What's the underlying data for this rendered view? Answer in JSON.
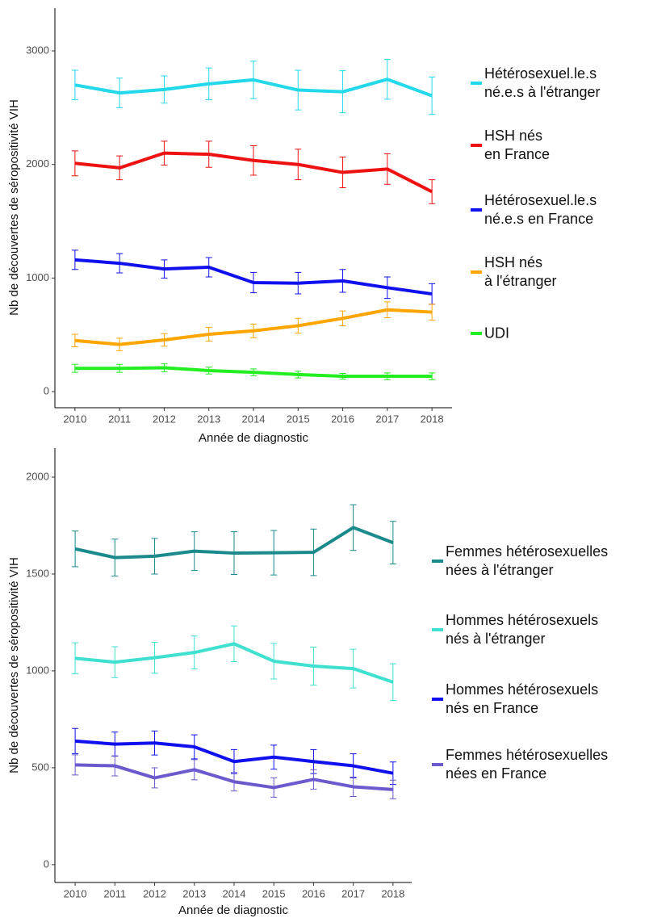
{
  "chart_data": [
    {
      "type": "line",
      "x_label": "Année de diagnostic",
      "y_label": "Nb de découvertes de séropositivité VIH",
      "x": [
        2010,
        2011,
        2012,
        2013,
        2014,
        2015,
        2016,
        2017,
        2018
      ],
      "xlim": [
        2009.55,
        2018.45
      ],
      "xticks": [
        2010,
        2011,
        2012,
        2013,
        2014,
        2015,
        2016,
        2017,
        2018
      ],
      "ylim": [
        -142,
        3377
      ],
      "yticks": [
        0,
        1000,
        2000,
        3000
      ],
      "series": [
        {
          "name": "Hétérosexuel.le.s\n né.e.s à l'étranger",
          "color": "#22d8ea",
          "values": [
            2700,
            2630,
            2660,
            2710,
            2745,
            2655,
            2640,
            2750,
            2605
          ],
          "errors": [
            130,
            130,
            120,
            140,
            165,
            175,
            185,
            175,
            165
          ]
        },
        {
          "name": "HSH nés\n en France",
          "color": "#ee1111",
          "values": [
            2010,
            1970,
            2100,
            2090,
            2035,
            2000,
            1930,
            1960,
            1760
          ],
          "errors": [
            110,
            105,
            105,
            115,
            130,
            135,
            135,
            135,
            105
          ]
        },
        {
          "name": "Hétérosexuel.le.s\n né.e.s en France",
          "color": "#1010ee",
          "values": [
            1160,
            1130,
            1080,
            1095,
            960,
            955,
            975,
            915,
            860
          ],
          "errors": [
            85,
            85,
            80,
            85,
            90,
            95,
            100,
            95,
            90
          ]
        },
        {
          "name": "HSH nés\n à l'étranger",
          "color": "#ffa500",
          "values": [
            450,
            415,
            455,
            505,
            535,
            580,
            645,
            720,
            700
          ],
          "errors": [
            55,
            55,
            55,
            60,
            60,
            65,
            65,
            70,
            70
          ]
        },
        {
          "name": "UDI",
          "color": "#22ee22",
          "values": [
            205,
            205,
            210,
            185,
            170,
            150,
            135,
            135,
            135
          ],
          "errors": [
            35,
            35,
            35,
            30,
            30,
            30,
            25,
            30,
            30
          ]
        }
      ]
    },
    {
      "type": "line",
      "x_label": "Année de diagnostic",
      "y_label": "Nb de découvertes de séropositivité VIH",
      "x": [
        2010,
        2011,
        2012,
        2013,
        2014,
        2015,
        2016,
        2017,
        2018
      ],
      "xlim": [
        2009.49,
        2018.47
      ],
      "xticks": [
        2010,
        2011,
        2012,
        2013,
        2014,
        2015,
        2016,
        2017,
        2018
      ],
      "ylim": [
        -92,
        2150
      ],
      "yticks": [
        0,
        500,
        1000,
        1500,
        2000
      ],
      "series": [
        {
          "name": "Femmes hétérosexuelles\nnées à l'étranger",
          "color": "#1a8a8c",
          "values": [
            1630,
            1585,
            1592,
            1618,
            1608,
            1610,
            1612,
            1740,
            1662
          ],
          "errors": [
            92,
            95,
            92,
            100,
            110,
            115,
            120,
            118,
            110
          ]
        },
        {
          "name": "Hommes hétérosexuels\nnés à l'étranger",
          "color": "#40e0d0",
          "values": [
            1065,
            1045,
            1068,
            1095,
            1140,
            1050,
            1025,
            1012,
            942
          ],
          "errors": [
            80,
            80,
            80,
            85,
            92,
            92,
            98,
            100,
            95
          ]
        },
        {
          "name": "Hommes hétérosexuels\nnés en France",
          "color": "#1010ee",
          "values": [
            638,
            622,
            628,
            608,
            532,
            555,
            532,
            510,
            472
          ],
          "errors": [
            65,
            62,
            62,
            62,
            62,
            62,
            62,
            62,
            58
          ]
        },
        {
          "name": "Femmes hétérosexuelles\nnées en France",
          "color": "#6a5acd",
          "values": [
            515,
            510,
            448,
            490,
            428,
            398,
            440,
            402,
            388
          ],
          "errors": [
            52,
            52,
            52,
            52,
            48,
            50,
            50,
            50,
            48
          ]
        }
      ]
    }
  ]
}
